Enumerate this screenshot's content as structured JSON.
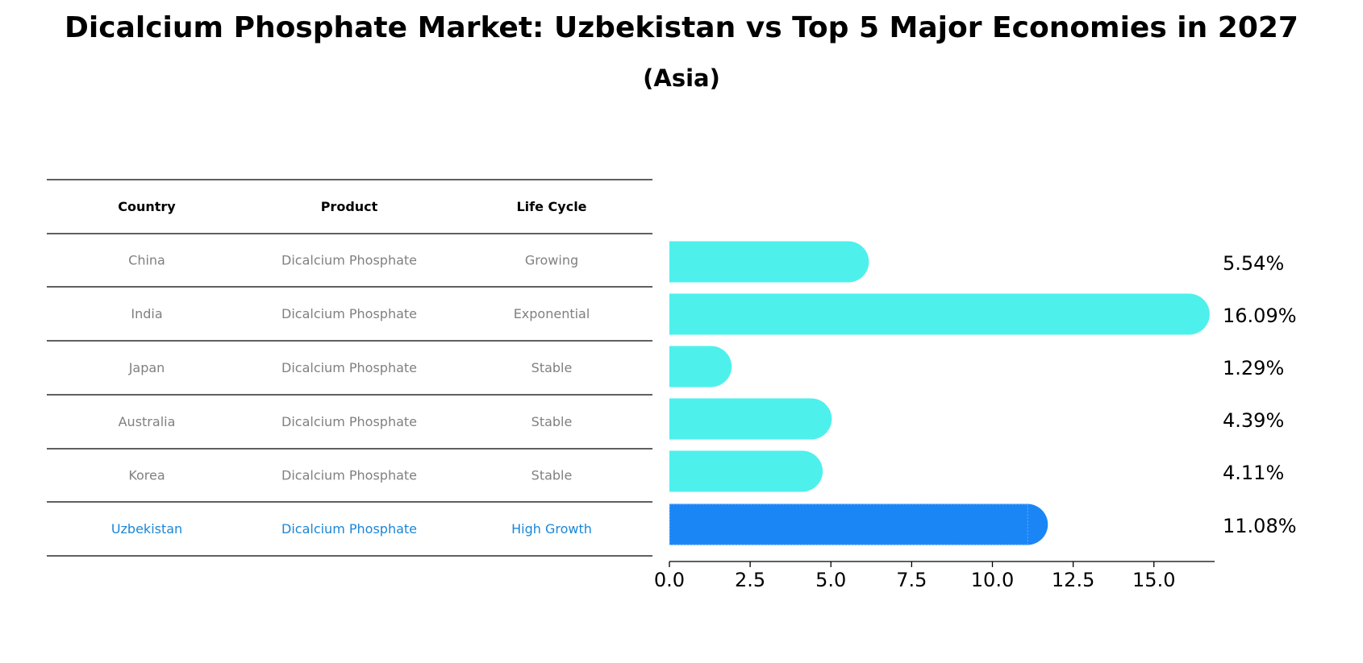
{
  "chart_data": {
    "type": "bar",
    "orientation": "horizontal",
    "title": "Dicalcium Phosphate Market: Uzbekistan vs Top 5 Major Economies in 2027",
    "subtitle": "(Asia)",
    "table": {
      "headers": [
        "Country",
        "Product",
        "Life Cycle"
      ],
      "rows": [
        [
          "China",
          "Dicalcium Phosphate",
          "Growing"
        ],
        [
          "India",
          "Dicalcium Phosphate",
          "Exponential"
        ],
        [
          "Japan",
          "Dicalcium Phosphate",
          "Stable"
        ],
        [
          "Australia",
          "Dicalcium Phosphate",
          "Stable"
        ],
        [
          "Korea",
          "Dicalcium Phosphate",
          "Stable"
        ],
        [
          "Uzbekistan",
          "Dicalcium Phosphate",
          "High Growth"
        ]
      ],
      "highlight_row": 5
    },
    "categories": [
      "China",
      "India",
      "Japan",
      "Australia",
      "Korea",
      "Uzbekistan"
    ],
    "values": [
      5.54,
      16.09,
      1.29,
      4.39,
      4.11,
      11.08
    ],
    "value_labels": [
      "5.54%",
      "16.09%",
      "1.29%",
      "4.39%",
      "4.11%",
      "11.08%"
    ],
    "xlim": [
      0,
      16.9
    ],
    "xticks": [
      0.0,
      2.5,
      5.0,
      7.5,
      10.0,
      12.5,
      15.0
    ],
    "xtick_labels": [
      "0.0",
      "2.5",
      "5.0",
      "7.5",
      "10.0",
      "12.5",
      "15.0"
    ],
    "grid": false,
    "colors": {
      "bar": "#4ef0ec",
      "highlight_bar": "#1a86f5",
      "highlight_text": "#1a86d8",
      "muted_text": "#808080"
    }
  }
}
